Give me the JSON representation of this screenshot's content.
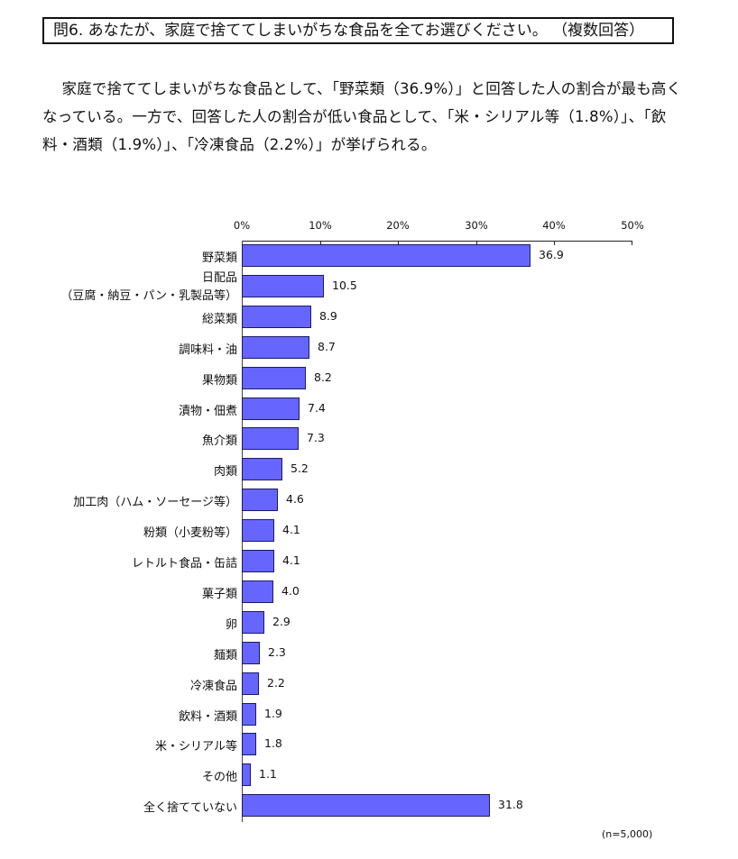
{
  "question": {
    "text": "問6. あなたが、家庭で捨ててしまいがちな食品を全てお選びください。 （複数回答）"
  },
  "summary": {
    "text": "家庭で捨ててしまいがちな食品として、「野菜類（36.9%）」と回答した人の割合が最も高くなっている。一方で、回答した人の割合が低い食品として、「米・シリアル等（1.8%）」、「飲料・酒類（1.9%）」、「冷凍食品（2.2%）」が挙げられる。"
  },
  "colors": {
    "bar_fill": "#6666ff",
    "bar_border": "#1a1a66"
  },
  "chart_data": {
    "type": "bar",
    "orientation": "horizontal",
    "title": "",
    "xlabel": "",
    "ylabel": "",
    "xlim": [
      0,
      50
    ],
    "x_ticks": [
      "0%",
      "10%",
      "20%",
      "30%",
      "40%",
      "50%"
    ],
    "axis_position": "top",
    "grid": false,
    "legend": null,
    "categories": [
      "野菜類",
      "日配品\n（豆腐・納豆・パン・乳製品等）",
      "総菜類",
      "調味料・油",
      "果物類",
      "漬物・佃煮",
      "魚介類",
      "肉類",
      "加工肉（ハム・ソーセージ等）",
      "粉類（小麦粉等）",
      "レトルト食品・缶詰",
      "菓子類",
      "卵",
      "麺類",
      "冷凍食品",
      "飲料・酒類",
      "米・シリアル等",
      "その他",
      "全く捨てていない"
    ],
    "values": [
      36.9,
      10.5,
      8.9,
      8.7,
      8.2,
      7.4,
      7.3,
      5.2,
      4.6,
      4.1,
      4.1,
      4.0,
      2.9,
      2.3,
      2.2,
      1.9,
      1.8,
      1.1,
      31.8
    ],
    "value_labels": [
      "36.9",
      "10.5",
      "8.9",
      "8.7",
      "8.2",
      "7.4",
      "7.3",
      "5.2",
      "4.6",
      "4.1",
      "4.1",
      "4.0",
      "2.9",
      "2.3",
      "2.2",
      "1.9",
      "1.8",
      "1.1",
      "31.8"
    ],
    "annotation": "(n=5,000)"
  },
  "rows": [
    {
      "label": "野菜類",
      "sub": "",
      "value": "36.9"
    },
    {
      "label": "日配品",
      "sub": "（豆腐・納豆・パン・乳製品等）",
      "value": "10.5"
    },
    {
      "label": "総菜類",
      "sub": "",
      "value": "8.9"
    },
    {
      "label": "調味料・油",
      "sub": "",
      "value": "8.7"
    },
    {
      "label": "果物類",
      "sub": "",
      "value": "8.2"
    },
    {
      "label": "漬物・佃煮",
      "sub": "",
      "value": "7.4"
    },
    {
      "label": "魚介類",
      "sub": "",
      "value": "7.3"
    },
    {
      "label": "肉類",
      "sub": "",
      "value": "5.2"
    },
    {
      "label": "加工肉（ハム・ソーセージ等）",
      "sub": "",
      "value": "4.6"
    },
    {
      "label": "粉類（小麦粉等）",
      "sub": "",
      "value": "4.1"
    },
    {
      "label": "レトルト食品・缶詰",
      "sub": "",
      "value": "4.1"
    },
    {
      "label": "菓子類",
      "sub": "",
      "value": "4.0"
    },
    {
      "label": "卵",
      "sub": "",
      "value": "2.9"
    },
    {
      "label": "麺類",
      "sub": "",
      "value": "2.3"
    },
    {
      "label": "冷凍食品",
      "sub": "",
      "value": "2.2"
    },
    {
      "label": "飲料・酒類",
      "sub": "",
      "value": "1.9"
    },
    {
      "label": "米・シリアル等",
      "sub": "",
      "value": "1.8"
    },
    {
      "label": "その他",
      "sub": "",
      "value": "1.1"
    },
    {
      "label": "全く捨てていない",
      "sub": "",
      "value": "31.8"
    }
  ],
  "axis": {
    "ticks": [
      "0%",
      "10%",
      "20%",
      "30%",
      "40%",
      "50%"
    ]
  },
  "note": "(n=5,000)"
}
